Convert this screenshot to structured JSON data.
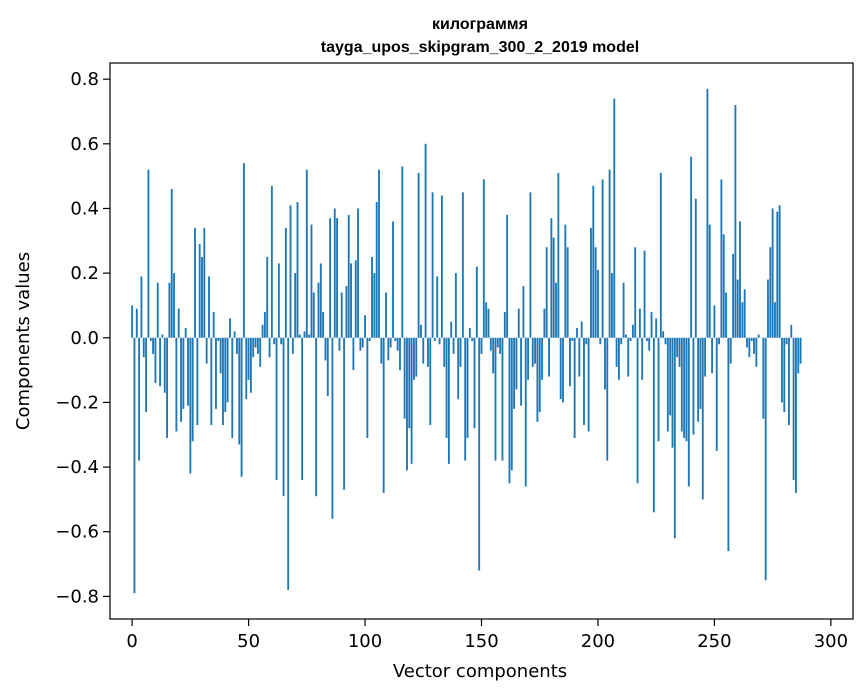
{
  "chart_data": {
    "type": "bar",
    "title": "килограммя",
    "subtitle": "tayga_upos_skipgram_300_2_2019 model",
    "xlabel": "Vector components",
    "ylabel": "Components values",
    "xlim": [
      -9.5,
      309.5
    ],
    "ylim": [
      -0.87,
      0.85
    ],
    "xticks": [
      0,
      50,
      100,
      150,
      200,
      250,
      300
    ],
    "yticks": [
      -0.8,
      -0.6,
      -0.4,
      -0.2,
      0.0,
      0.2,
      0.4,
      0.6,
      0.8
    ],
    "ytick_labels": [
      "−0.8",
      "−0.6",
      "−0.4",
      "−0.2",
      "0.0",
      "0.2",
      "0.4",
      "0.6",
      "0.8"
    ],
    "bar_color": "#1f77b4",
    "grid": false,
    "series": [
      {
        "values": [
          0.1,
          -0.79,
          0.09,
          -0.38,
          0.19,
          -0.06,
          -0.23,
          0.52,
          -0.01,
          -0.05,
          -0.14,
          0.17,
          -0.15,
          0.01,
          -0.17,
          -0.31,
          0.17,
          0.46,
          0.2,
          -0.29,
          0.09,
          -0.26,
          -0.22,
          0.03,
          -0.21,
          -0.42,
          -0.32,
          0.34,
          -0.27,
          0.29,
          0.25,
          0.34,
          -0.08,
          0.19,
          -0.27,
          0.08,
          -0.22,
          -0.01,
          -0.11,
          -0.27,
          -0.23,
          -0.2,
          0.06,
          -0.31,
          0.02,
          -0.05,
          -0.33,
          -0.43,
          0.54,
          -0.19,
          -0.13,
          -0.17,
          -0.06,
          -0.03,
          -0.05,
          -0.09,
          0.04,
          0.08,
          0.25,
          -0.06,
          0.47,
          -0.02,
          -0.44,
          0.23,
          -0.02,
          -0.49,
          0.34,
          -0.78,
          0.41,
          -0.05,
          0.2,
          0.42,
          0.01,
          -0.44,
          0.02,
          0.52,
          0.01,
          0.35,
          0.14,
          -0.49,
          0.17,
          0.23,
          0.08,
          -0.07,
          -0.18,
          0.37,
          -0.56,
          0.4,
          0.37,
          -0.04,
          0.14,
          -0.47,
          0.16,
          0.38,
          0.23,
          -0.1,
          0.24,
          0.4,
          -0.04,
          -0.03,
          0.07,
          -0.31,
          -0.01,
          0.25,
          0.2,
          0.42,
          0.52,
          -0.08,
          -0.48,
          0.14,
          -0.07,
          -0.03,
          0.36,
          -0.01,
          -0.04,
          -0.1,
          0.53,
          -0.25,
          -0.41,
          -0.28,
          -0.39,
          -0.13,
          -0.12,
          0.51,
          0.04,
          -0.08,
          0.6,
          -0.09,
          -0.27,
          0.45,
          -0.01,
          0.19,
          -0.02,
          0.44,
          -0.09,
          -0.31,
          -0.39,
          0.05,
          -0.05,
          0.2,
          -0.19,
          -0.09,
          0.45,
          -0.38,
          -0.31,
          0.03,
          -0.01,
          -0.28,
          0.22,
          -0.72,
          -0.05,
          0.49,
          0.11,
          0.09,
          -0.04,
          -0.11,
          -0.38,
          -0.03,
          -0.05,
          -0.38,
          0.08,
          0.38,
          -0.45,
          -0.41,
          -0.22,
          -0.16,
          0.09,
          -0.21,
          0.16,
          -0.46,
          -0.13,
          0.45,
          -0.09,
          -0.08,
          -0.26,
          -0.23,
          -0.13,
          0.09,
          0.28,
          -0.12,
          0.37,
          0.31,
          0.17,
          0.51,
          -0.19,
          -0.2,
          0.35,
          0.28,
          -0.15,
          -0.01,
          -0.31,
          0.03,
          -0.12,
          0.05,
          -0.27,
          -0.02,
          -0.29,
          0.34,
          0.47,
          0.28,
          0.21,
          -0.02,
          0.49,
          -0.16,
          -0.38,
          0.52,
          0.2,
          0.74,
          -0.09,
          -0.13,
          -0.02,
          0.17,
          0.01,
          -0.12,
          -0.01,
          0.04,
          0.28,
          -0.45,
          0.09,
          -0.13,
          0.27,
          -0.01,
          -0.04,
          0.08,
          -0.54,
          0.06,
          -0.32,
          0.51,
          0.02,
          -0.02,
          -0.29,
          -0.24,
          -0.34,
          -0.62,
          -0.06,
          -0.09,
          -0.29,
          -0.31,
          -0.32,
          -0.46,
          0.56,
          -0.3,
          0.43,
          -0.26,
          -0.22,
          -0.5,
          -0.12,
          0.77,
          0.35,
          -0.11,
          0.1,
          -0.35,
          -0.02,
          0.49,
          0.32,
          0.14,
          -0.66,
          -0.08,
          0.26,
          0.72,
          0.18,
          0.36,
          0.11,
          0.15,
          -0.03,
          -0.06,
          -0.01,
          -0.05,
          -0.09,
          0.01,
          0.0,
          -0.25,
          -0.75,
          0.18,
          0.28,
          0.4,
          0.11,
          0.39,
          0.41,
          -0.2,
          -0.23,
          -0.02,
          -0.27,
          0.04,
          -0.44,
          -0.48,
          -0.11,
          -0.08
        ]
      }
    ]
  }
}
